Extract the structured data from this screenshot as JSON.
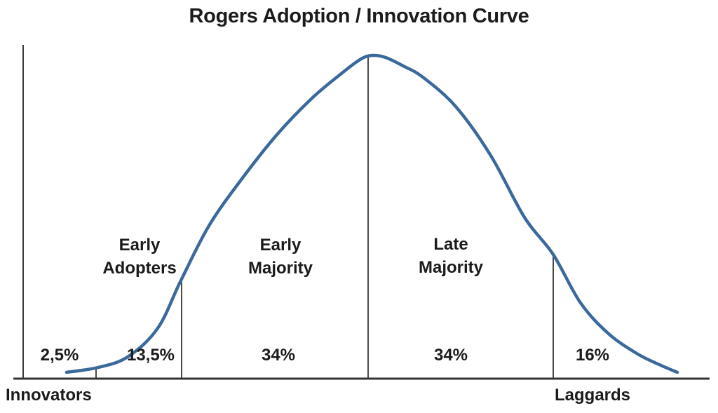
{
  "chart_data": {
    "type": "area",
    "title": "Rogers Adoption / Innovation Curve",
    "description": "Bell-shaped (normal distribution) adoption curve divided into five adopter segments by vertical dividers",
    "segments": [
      {
        "name": "Innovators",
        "percent_label": "2,5%",
        "value": 2.5
      },
      {
        "name": "Early Adopters",
        "label_lines": [
          "Early",
          "Adopters"
        ],
        "percent_label": "13,5%",
        "value": 13.5
      },
      {
        "name": "Early Majority",
        "label_lines": [
          "Early",
          "Majority"
        ],
        "percent_label": "34%",
        "value": 34
      },
      {
        "name": "Late Majority",
        "label_lines": [
          "Late",
          "Majority"
        ],
        "percent_label": "34%",
        "value": 34
      },
      {
        "name": "Laggards",
        "percent_label": "16%",
        "value": 16
      }
    ],
    "legend": "none",
    "grid": "off",
    "curve_color": "#3b699c",
    "axis_color": "#3a3a3a",
    "text_color": "#1b1b1b",
    "background_color": "#ffffff"
  }
}
